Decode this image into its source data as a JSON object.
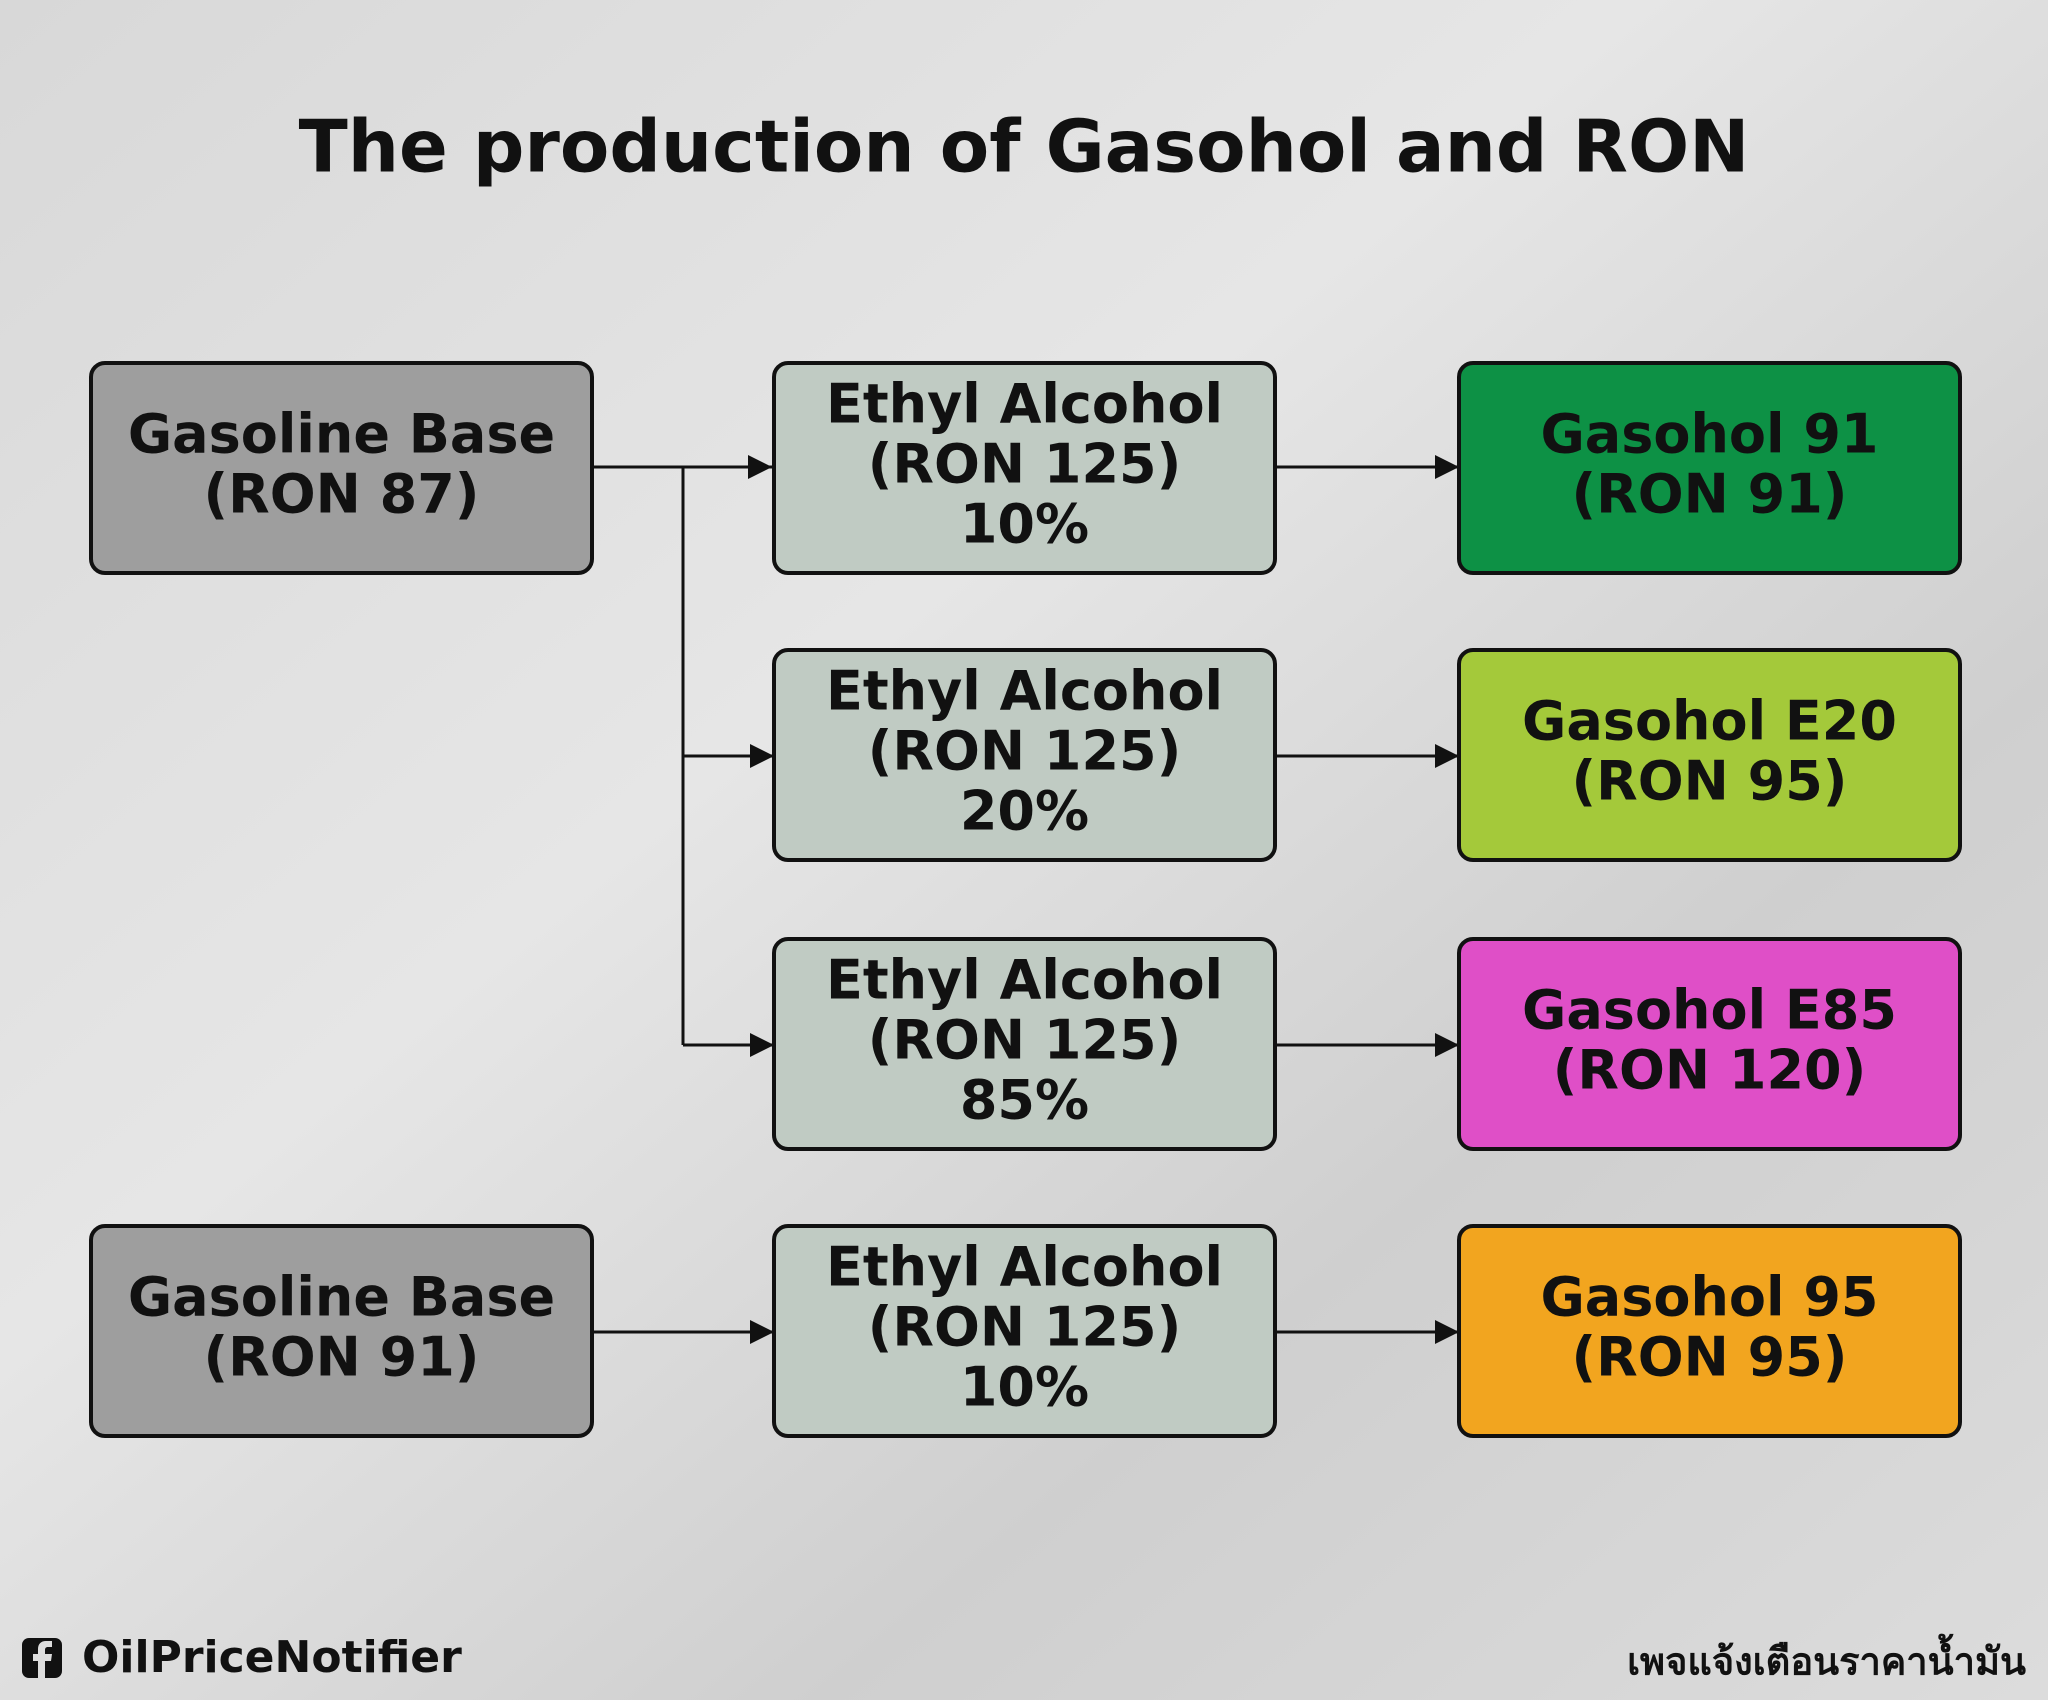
{
  "title": "The production of Gasohol and RON",
  "nodes": [
    {
      "lines": [
        "Gasoline Base",
        "(RON 87)"
      ],
      "color": "#9e9e9e"
    },
    {
      "lines": [
        "Ethyl Alcohol",
        "(RON 125)",
        "10%"
      ],
      "color": "#c0cbc3"
    },
    {
      "lines": [
        "Gasohol 91",
        "(RON 91)"
      ],
      "color": "#0d9145"
    },
    {
      "lines": [
        "Ethyl Alcohol",
        "(RON 125)",
        "20%"
      ],
      "color": "#c0cbc3"
    },
    {
      "lines": [
        "Gasohol E20",
        "(RON 95)"
      ],
      "color": "#a4c93a"
    },
    {
      "lines": [
        "Ethyl Alcohol",
        "(RON 125)",
        "85%"
      ],
      "color": "#c0cbc3"
    },
    {
      "lines": [
        "Gasohol E85",
        "(RON 120)"
      ],
      "color": "#df4fc7"
    },
    {
      "lines": [
        "Gasoline Base",
        "(RON 91)"
      ],
      "color": "#9e9e9e"
    },
    {
      "lines": [
        "Ethyl Alcohol",
        "(RON 125)",
        "10%"
      ],
      "color": "#c0cbc3"
    },
    {
      "lines": [
        "Gasohol 95",
        "(RON 95)"
      ],
      "color": "#f2a51f"
    }
  ],
  "footer": {
    "brand": "OilPriceNotifier",
    "tagline": "เพจแจ้งเตือนราคาน้ำมัน"
  }
}
